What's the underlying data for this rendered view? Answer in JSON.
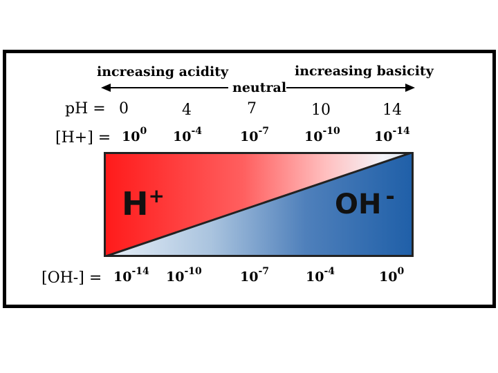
{
  "header": {
    "acidity_label": "increasing acidity",
    "neutral_label": "neutral",
    "basicity_label": "increasing basicity"
  },
  "ph_row": {
    "label": "pH =",
    "values": [
      "0",
      "4",
      "7",
      "10",
      "14"
    ]
  },
  "h_row": {
    "label": "[H+] =",
    "base": "10",
    "exponents": [
      "0",
      "-4",
      "-7",
      "-10",
      "-14"
    ]
  },
  "oh_row": {
    "label": "[OH-] =",
    "base": "10",
    "exponents": [
      "-14",
      "-10",
      "-7",
      "-4",
      "0"
    ]
  },
  "bar": {
    "h_symbol": "H",
    "h_charge": "+",
    "oh_symbol": "OH",
    "oh_charge": "-",
    "colors": {
      "acid": "#ff1a1a",
      "acid_light": "#ffc0c0",
      "base": "#1f5fa8",
      "base_light": "#e8f0f8"
    }
  }
}
